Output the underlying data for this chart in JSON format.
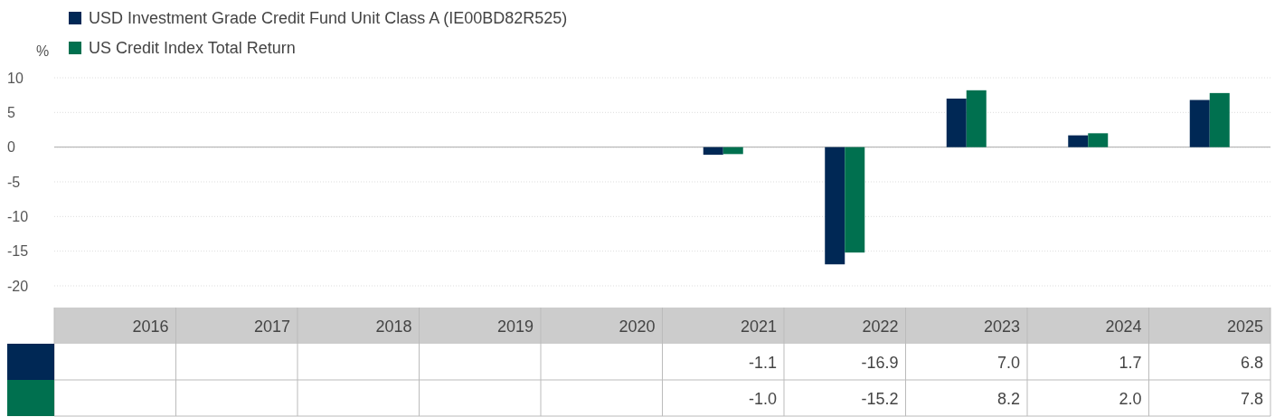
{
  "chart_data": {
    "type": "bar",
    "ylabel": "%",
    "categories": [
      "2016",
      "2017",
      "2018",
      "2019",
      "2020",
      "2021",
      "2022",
      "2023",
      "2024",
      "2025"
    ],
    "series": [
      {
        "name": "USD Investment Grade Credit Fund Unit Class A (IE00BD82R525)",
        "color": "#002855",
        "values": [
          null,
          null,
          null,
          null,
          null,
          -1.1,
          -16.9,
          7.0,
          1.7,
          6.8
        ],
        "value_labels": [
          null,
          null,
          null,
          null,
          null,
          "-1.1",
          "-16.9",
          "7.0",
          "1.7",
          "6.8"
        ]
      },
      {
        "name": "US Credit Index Total Return",
        "color": "#00704f",
        "values": [
          null,
          null,
          null,
          null,
          null,
          -1.0,
          -15.2,
          8.2,
          2.0,
          7.8
        ],
        "value_labels": [
          null,
          null,
          null,
          null,
          null,
          "-1.0",
          "-15.2",
          "8.2",
          "2.0",
          "7.8"
        ]
      }
    ],
    "ylim": [
      -20,
      10
    ],
    "yticks": [
      -20,
      -15,
      -10,
      -5,
      0,
      5,
      10
    ],
    "grid": "y",
    "legend": "top left"
  }
}
